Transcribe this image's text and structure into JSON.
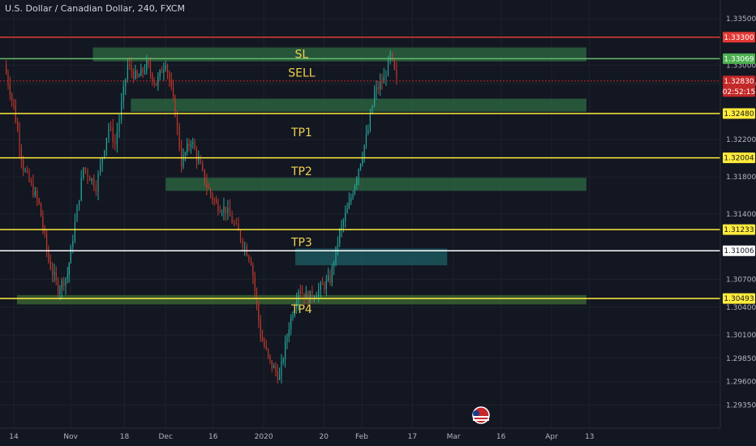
{
  "header": {
    "title": "U.S. Dollar / Canadian Dollar, 240, FXCM"
  },
  "chart_data": {
    "type": "candlestick",
    "grid": true,
    "ylim": [
      1.291,
      1.337
    ],
    "y_tick_labels": [
      "1.33500",
      "1.33000",
      "1.32800",
      "1.32200",
      "1.31800",
      "1.31400",
      "1.30700",
      "1.30400",
      "1.30100",
      "1.29850",
      "1.29600",
      "1.29350"
    ],
    "y_tick_values": [
      1.335,
      1.33,
      1.328,
      1.322,
      1.318,
      1.314,
      1.307,
      1.304,
      1.301,
      1.2985,
      1.296,
      1.2935
    ],
    "x_tick_labels": [
      "14",
      "Nov",
      "18",
      "Dec",
      "16",
      "2020",
      "20",
      "Feb",
      "17",
      "Mar",
      "16",
      "Apr",
      "13"
    ],
    "x_tick_dates": [
      "2019-10-14",
      "2019-11-01",
      "2019-11-18",
      "2019-12-01",
      "2019-12-16",
      "2020-01-01",
      "2020-01-20",
      "2020-02-01",
      "2020-02-17",
      "2020-03-01",
      "2020-03-16",
      "2020-04-01",
      "2020-04-13"
    ],
    "price_labels": [
      {
        "value": "1.33300",
        "color": "#e53935"
      },
      {
        "value": "1.33069",
        "color": "#4caf50"
      },
      {
        "value": "1.32830",
        "color": "#c62828"
      },
      {
        "value": "02:52:15",
        "color": "#c62828"
      },
      {
        "value": "1.32480",
        "color": "#ffeb3b"
      },
      {
        "value": "1.32004",
        "color": "#ffeb3b"
      },
      {
        "value": "1.31233",
        "color": "#ffeb3b"
      },
      {
        "value": "1.31006",
        "color": "#ffffff"
      },
      {
        "value": "1.30493",
        "color": "#ffeb3b"
      }
    ],
    "levels": [
      {
        "value": 1.333,
        "color": "#e53935"
      },
      {
        "value": 1.33069,
        "color": "#66bb6a"
      },
      {
        "value": 1.3283,
        "color": "#c62828",
        "dashed": true
      },
      {
        "value": 1.3248,
        "color": "#ffeb3b"
      },
      {
        "value": 1.32004,
        "color": "#ffeb3b"
      },
      {
        "value": 1.31233,
        "color": "#ffeb3b"
      },
      {
        "value": 1.31006,
        "color": "#ffffff"
      },
      {
        "value": 1.30493,
        "color": "#ffeb3b"
      }
    ],
    "zones": [
      {
        "from": "2019-11-08",
        "to": "2020-04-12",
        "high": 1.3319,
        "low": 1.3304,
        "color": "#2e6b43"
      },
      {
        "from": "2019-11-20",
        "to": "2020-04-12",
        "high": 1.3264,
        "low": 1.325,
        "color": "#2e6b43"
      },
      {
        "from": "2019-12-01",
        "to": "2020-04-12",
        "high": 1.3179,
        "low": 1.3165,
        "color": "#2e6b43"
      },
      {
        "from": "2020-01-11",
        "to": "2020-02-28",
        "high": 1.3103,
        "low": 1.3085,
        "color": "#1d5f66"
      },
      {
        "from": "2019-10-15",
        "to": "2020-04-12",
        "high": 1.3053,
        "low": 1.3043,
        "color": "#3f6b34"
      }
    ],
    "annotations": [
      {
        "text": "SL",
        "date": "2020-01-13",
        "value": 1.3312
      },
      {
        "text": "SELL",
        "date": "2020-01-13",
        "value": 1.3292
      },
      {
        "text": "TP1",
        "date": "2020-01-13",
        "value": 1.3228
      },
      {
        "text": "TP2",
        "date": "2020-01-13",
        "value": 1.3186
      },
      {
        "text": "TP3",
        "date": "2020-01-13",
        "value": 1.311
      },
      {
        "text": "TP4",
        "date": "2020-01-13",
        "value": 1.3038
      }
    ],
    "price_path": [
      [
        "2019-10-11",
        1.33
      ],
      [
        "2019-10-14",
        1.3255
      ],
      [
        "2019-10-17",
        1.319
      ],
      [
        "2019-10-22",
        1.315
      ],
      [
        "2019-10-25",
        1.309
      ],
      [
        "2019-10-28",
        1.306
      ],
      [
        "2019-10-31",
        1.3075
      ],
      [
        "2019-11-01",
        1.31
      ],
      [
        "2019-11-05",
        1.319
      ],
      [
        "2019-11-09",
        1.317
      ],
      [
        "2019-11-13",
        1.3235
      ],
      [
        "2019-11-15",
        1.3215
      ],
      [
        "2019-11-19",
        1.33
      ],
      [
        "2019-11-22",
        1.3285
      ],
      [
        "2019-11-25",
        1.33
      ],
      [
        "2019-11-28",
        1.328
      ],
      [
        "2019-12-01",
        1.3305
      ],
      [
        "2019-12-04",
        1.325
      ],
      [
        "2019-12-06",
        1.3195
      ],
      [
        "2019-12-09",
        1.322
      ],
      [
        "2019-12-12",
        1.319
      ],
      [
        "2019-12-14",
        1.317
      ],
      [
        "2019-12-17",
        1.315
      ],
      [
        "2019-12-20",
        1.3145
      ],
      [
        "2019-12-24",
        1.312
      ],
      [
        "2019-12-28",
        1.309
      ],
      [
        "2019-12-31",
        1.301
      ],
      [
        "2020-01-03",
        1.298
      ],
      [
        "2020-01-06",
        1.2965
      ],
      [
        "2020-01-09",
        1.302
      ],
      [
        "2020-01-12",
        1.306
      ],
      [
        "2020-01-15",
        1.305
      ],
      [
        "2020-01-19",
        1.306
      ],
      [
        "2020-01-22",
        1.307
      ],
      [
        "2020-01-25",
        1.312
      ],
      [
        "2020-01-28",
        1.315
      ],
      [
        "2020-01-31",
        1.319
      ],
      [
        "2020-02-03",
        1.323
      ],
      [
        "2020-02-05",
        1.327
      ],
      [
        "2020-02-08",
        1.3285
      ],
      [
        "2020-02-10",
        1.331
      ],
      [
        "2020-02-12",
        1.3283
      ]
    ]
  }
}
